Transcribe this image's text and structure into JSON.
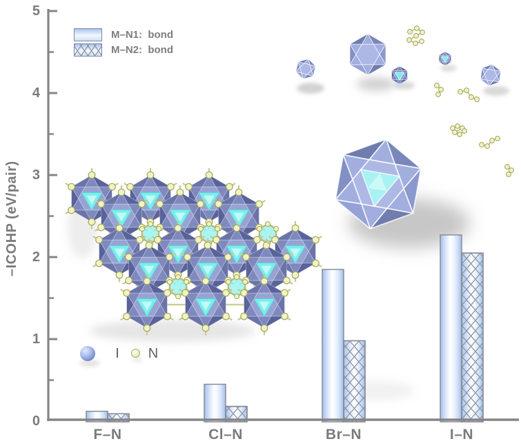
{
  "chart_data": {
    "type": "bar",
    "categories": [
      "F–N",
      "Cl–N",
      "Br–N",
      "I–N"
    ],
    "series": [
      {
        "name": "M–N1:  bond",
        "pattern": "gradient",
        "values": [
          0.12,
          0.45,
          1.85,
          2.27
        ]
      },
      {
        "name": "M–N2:  bond",
        "pattern": "crosshatch",
        "values": [
          0.09,
          0.18,
          0.98,
          2.05
        ]
      }
    ],
    "title": "",
    "xlabel": "",
    "ylabel": "–ICOHP (eV/pair)",
    "ylim": [
      0,
      5
    ],
    "ytick_labels": [
      "0",
      "1",
      "2",
      "3",
      "4",
      "5"
    ],
    "yminor_step": 0.5,
    "grid": false,
    "legend_position": "top-left"
  },
  "legend": {
    "items": [
      {
        "swatch": "gradient-bar-swatch",
        "label": "M–N1:  bond"
      },
      {
        "swatch": "crosshatch-bar-swatch",
        "label": "M–N2:  bond"
      }
    ]
  },
  "atom_legend": {
    "items": [
      {
        "icon": "iodine-atom-icon",
        "symbol": "I",
        "color": "#7e95d6"
      },
      {
        "icon": "nitrogen-atom-icon",
        "symbol": "N",
        "color": "#eef1c6"
      }
    ]
  },
  "insets": {
    "lattice_icon": "icosahedra-crystal-lattice",
    "large_icosahedron_icon": "icosahedron-large",
    "cluster_icons": "small-icosahedra-and-n-chain-molecules"
  },
  "colors": {
    "axis": "#858585",
    "text": "#7b7b7b",
    "bar_edge_blue": "#a6c2ee",
    "bar_border": "#848791",
    "icosahedron_blue": "#7d89c1",
    "cyan_face": "#8ef0ee",
    "nitrogen_yellow": "#eff2c7"
  }
}
